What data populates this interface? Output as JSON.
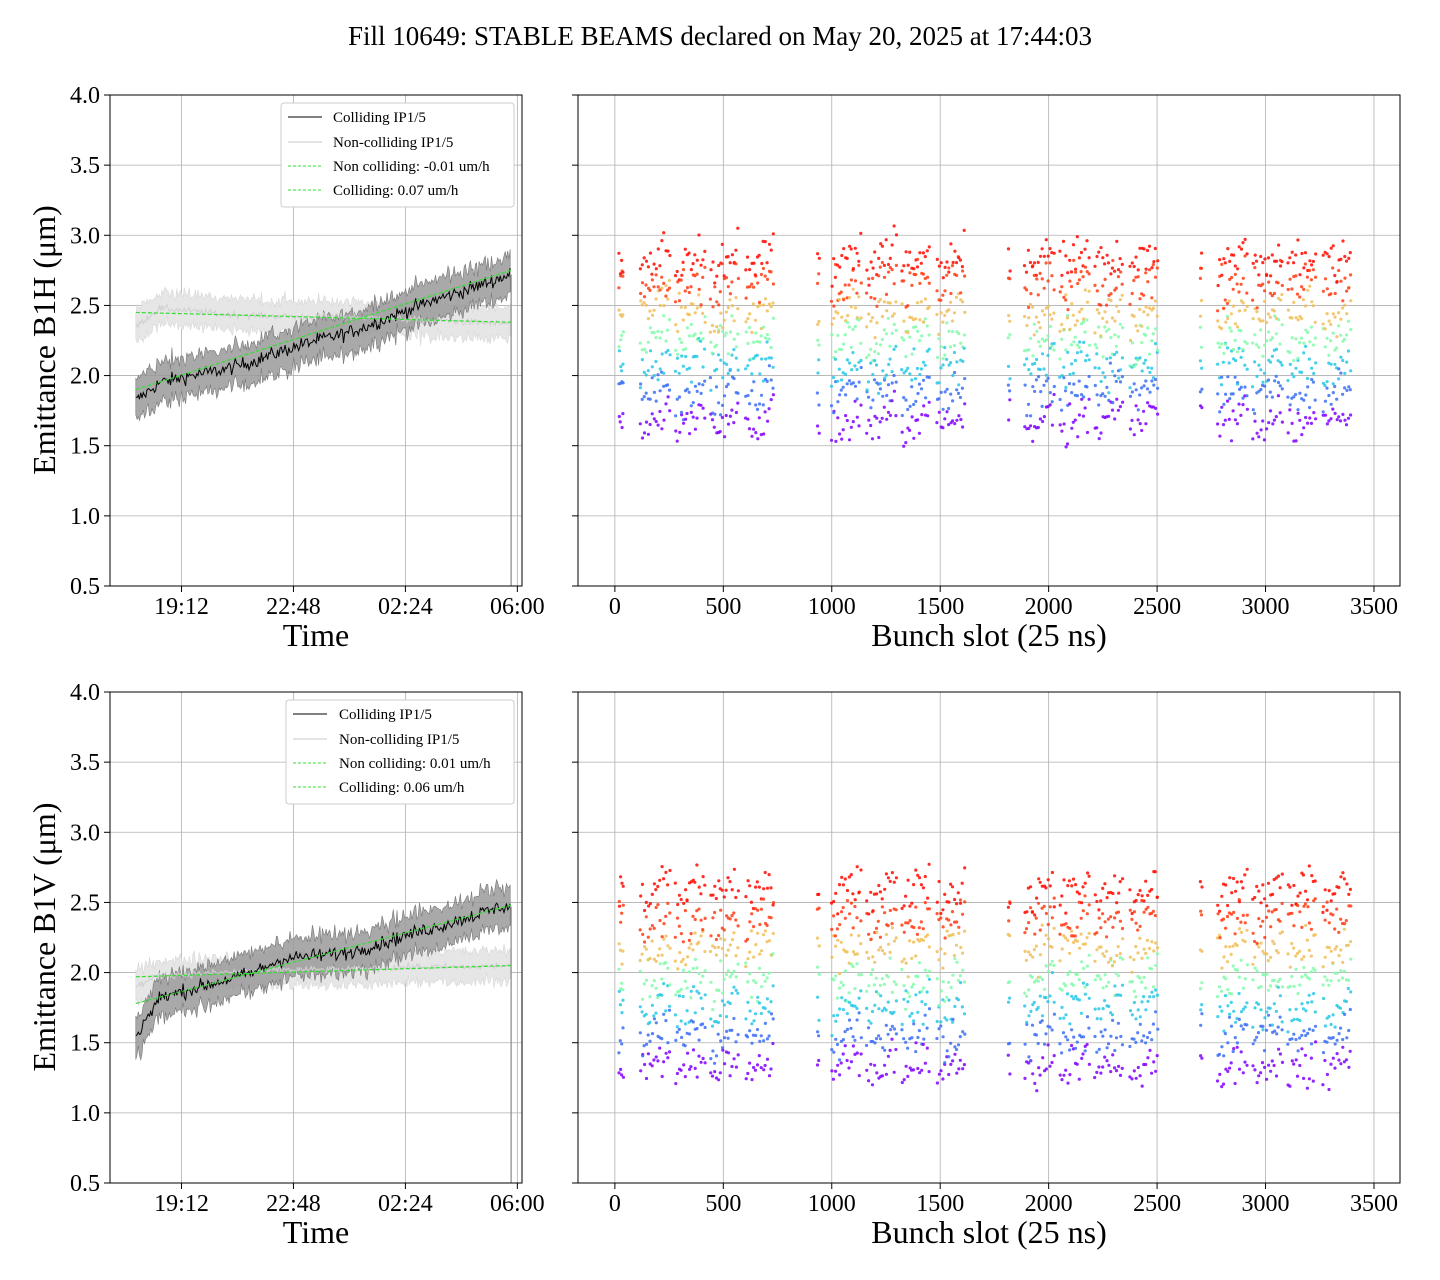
{
  "title": "Fill 10649: STABLE BEAMS declared on May 20, 2025 at 17:44:03",
  "colors": {
    "colliding": "#000000",
    "noncolliding": "#c8c8c8",
    "fit": "#33dd33",
    "band_colliding": "#9a9a9a",
    "band_noncolliding": "#e6e6e6",
    "grid": "#b0b0b0"
  },
  "chart_data": [
    {
      "id": "b1h_time",
      "type": "line",
      "xlabel": "Time",
      "ylabel": "Emittance B1H (μm)",
      "ylim": [
        0.5,
        4.0
      ],
      "yticks": [
        "0.5",
        "1.0",
        "1.5",
        "2.0",
        "2.5",
        "3.0",
        "3.5",
        "4.0"
      ],
      "xticks": [
        "19:12",
        "22:48",
        "02:24",
        "06:00"
      ],
      "grid": true,
      "legend_position": "top-right",
      "legend": [
        "Colliding IP1/5",
        "Non-colliding IP1/5",
        "Non colliding: -0.01 um/h",
        "Colliding: 0.07 um/h"
      ],
      "x_hours": [
        17.73,
        18.5,
        19.5,
        20.5,
        21.5,
        22.5,
        23.5,
        24.5,
        25.5,
        26.5,
        27.5,
        28.5,
        29.5,
        29.8
      ],
      "series": [
        {
          "name": "Colliding IP1/5",
          "values": [
            1.82,
            1.95,
            2.0,
            2.04,
            2.1,
            2.18,
            2.25,
            2.3,
            2.38,
            2.47,
            2.55,
            2.62,
            2.7,
            2.72
          ]
        },
        {
          "name": "Non-colliding IP1/5",
          "values": [
            2.35,
            2.48,
            2.46,
            2.44,
            2.43,
            2.42,
            2.42,
            2.42,
            2.41,
            2.4,
            2.39,
            2.38,
            2.37,
            2.37
          ]
        },
        {
          "name": "Non colliding: -0.01 um/h",
          "values": [
            2.45,
            2.38
          ]
        },
        {
          "name": "Colliding: 0.07 um/h",
          "values": [
            1.9,
            2.75
          ]
        }
      ]
    },
    {
      "id": "b1h_bunch",
      "type": "scatter",
      "xlabel": "Bunch slot (25 ns)",
      "ylim": [
        0.5,
        4.0
      ],
      "xlim": [
        -170,
        3620
      ],
      "xticks": [
        "0",
        "500",
        "1000",
        "1500",
        "2000",
        "2500",
        "3000",
        "3500"
      ],
      "grid": true,
      "colormap": "rainbow",
      "trains": [
        [
          118,
          748
        ],
        [
          1000,
          1625
        ],
        [
          1890,
          2515
        ],
        [
          2780,
          3415
        ]
      ],
      "singles": [
        [
          20,
          40
        ],
        [
          935,
          945
        ],
        [
          1815,
          1825
        ],
        [
          2700,
          2710
        ]
      ],
      "y_range_per_bunch": [
        1.7,
        2.85
      ]
    },
    {
      "id": "b1v_time",
      "type": "line",
      "xlabel": "Time",
      "ylabel": "Emittance B1V (μm)",
      "ylim": [
        0.5,
        4.0
      ],
      "yticks": [
        "0.5",
        "1.0",
        "1.5",
        "2.0",
        "2.5",
        "3.0",
        "3.5",
        "4.0"
      ],
      "xticks": [
        "19:12",
        "22:48",
        "02:24",
        "06:00"
      ],
      "grid": true,
      "legend_position": "top-right",
      "legend": [
        "Colliding IP1/5",
        "Non-colliding IP1/5",
        "Non colliding: 0.01 um/h",
        "Colliding: 0.06 um/h"
      ],
      "x_hours": [
        17.73,
        18.5,
        19.5,
        20.5,
        21.5,
        22.5,
        23.5,
        24.5,
        25.5,
        26.5,
        27.5,
        28.5,
        29.5,
        29.8
      ],
      "series": [
        {
          "name": "Colliding IP1/5",
          "values": [
            1.55,
            1.82,
            1.88,
            1.94,
            2.0,
            2.1,
            2.12,
            2.14,
            2.2,
            2.27,
            2.33,
            2.4,
            2.47,
            2.47
          ]
        },
        {
          "name": "Non-colliding IP1/5",
          "values": [
            1.9,
            1.98,
            1.99,
            2.0,
            2.01,
            2.02,
            2.02,
            2.02,
            2.03,
            2.04,
            2.04,
            2.04,
            2.05,
            2.05
          ]
        },
        {
          "name": "Non colliding: 0.01 um/h",
          "values": [
            1.97,
            2.05
          ]
        },
        {
          "name": "Colliding: 0.06 um/h",
          "values": [
            1.78,
            2.48
          ]
        }
      ]
    },
    {
      "id": "b1v_bunch",
      "type": "scatter",
      "xlabel": "Bunch slot (25 ns)",
      "ylim": [
        0.5,
        4.0
      ],
      "xlim": [
        -170,
        3620
      ],
      "xticks": [
        "0",
        "500",
        "1000",
        "1500",
        "2000",
        "2500",
        "3000",
        "3500"
      ],
      "grid": true,
      "colormap": "rainbow",
      "trains": [
        [
          118,
          748
        ],
        [
          1000,
          1625
        ],
        [
          1890,
          2515
        ],
        [
          2780,
          3415
        ]
      ],
      "singles": [
        [
          20,
          40
        ],
        [
          935,
          945
        ],
        [
          1815,
          1825
        ],
        [
          2700,
          2710
        ]
      ],
      "y_range_per_bunch": [
        1.35,
        2.6
      ]
    }
  ]
}
